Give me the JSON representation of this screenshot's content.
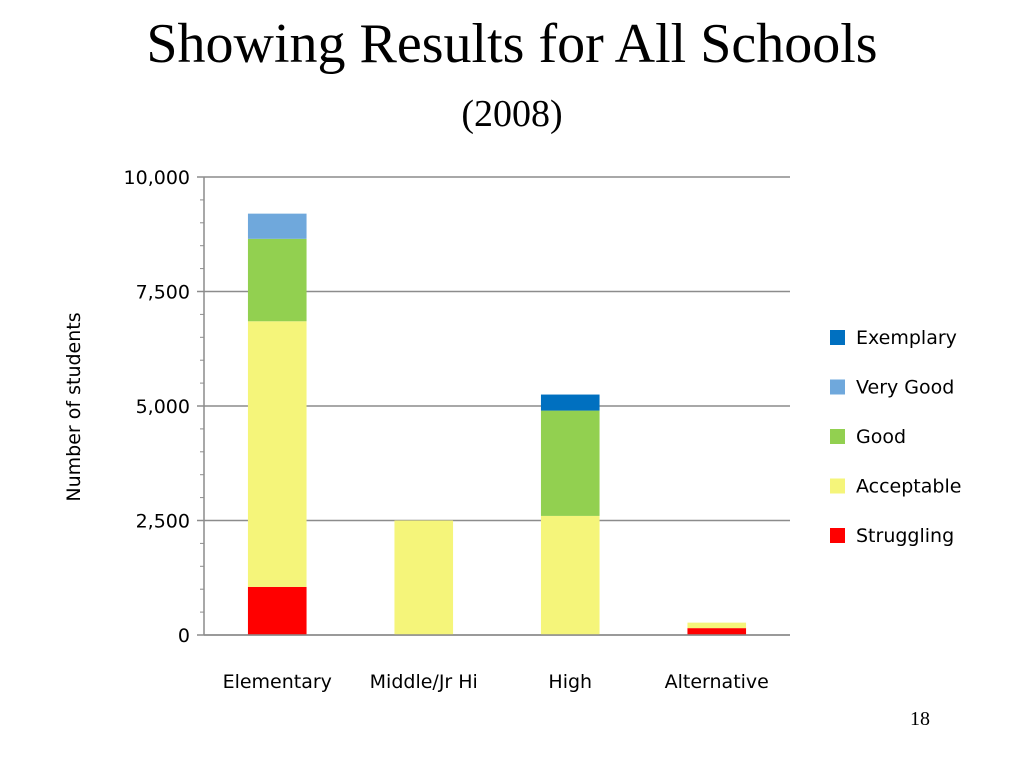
{
  "slide": {
    "title": "Showing Results for All Schools",
    "subtitle": "(2008)",
    "page_number": "18"
  },
  "chart_data": {
    "type": "bar",
    "stacked": true,
    "categories": [
      "Elementary",
      "Middle/Jr Hi",
      "High",
      "Alternative"
    ],
    "series": [
      {
        "name": "Struggling",
        "color": "#ff0000",
        "values": [
          1050,
          0,
          0,
          150
        ]
      },
      {
        "name": "Acceptable",
        "color": "#f5f57a",
        "values": [
          5800,
          2500,
          2600,
          120
        ]
      },
      {
        "name": "Good",
        "color": "#92d050",
        "values": [
          1800,
          0,
          2300,
          0
        ]
      },
      {
        "name": "Very Good",
        "color": "#6fa8dc",
        "values": [
          550,
          0,
          0,
          0
        ]
      },
      {
        "name": "Exemplary",
        "color": "#0070c0",
        "values": [
          0,
          0,
          350,
          0
        ]
      }
    ],
    "ylabel": "Number of students",
    "xlabel": "",
    "ylim": [
      0,
      10000
    ],
    "yticks": [
      "0",
      "2,500",
      "5,000",
      "7,500",
      "10,000"
    ],
    "ytick_values": [
      0,
      2500,
      5000,
      7500,
      10000
    ],
    "grid": true,
    "legend_position": "right",
    "legend_order": [
      "Exemplary",
      "Very Good",
      "Good",
      "Acceptable",
      "Struggling"
    ]
  }
}
